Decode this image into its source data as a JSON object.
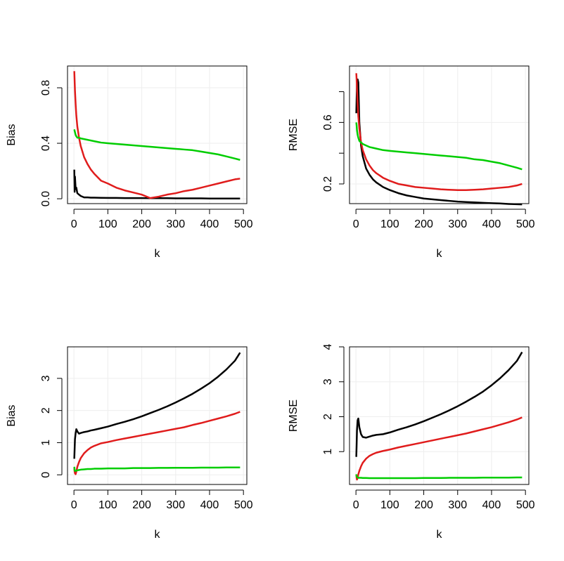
{
  "chart_data": [
    {
      "type": "line",
      "xlabel": "k",
      "ylabel": "Bias",
      "x": [
        1,
        2,
        3,
        5,
        7,
        10,
        15,
        20,
        30,
        40,
        50,
        60,
        80,
        100,
        125,
        150,
        175,
        200,
        225,
        250,
        275,
        300,
        325,
        350,
        375,
        400,
        425,
        450,
        475,
        490
      ],
      "xlim": [
        -19,
        510
      ],
      "xticks": [
        0,
        100,
        200,
        300,
        400,
        500
      ],
      "ylim": [
        -0.035,
        0.957
      ],
      "yticks": [
        {
          "value": 0,
          "label": "0.0"
        },
        0.4,
        0.8
      ],
      "grid": true,
      "series": [
        {
          "color": "#000000",
          "values": [
            0.21,
            0.05,
            0.16,
            0.07,
            0.08,
            0.04,
            0.03,
            0.02,
            0.01,
            0.01,
            0.008,
            0.008,
            0.007,
            0.006,
            0.006,
            0.005,
            0.005,
            0.005,
            0.004,
            0.004,
            0.004,
            0.003,
            0.003,
            0.003,
            0.003,
            0.002,
            0.002,
            0.002,
            0.002,
            0.002
          ]
        },
        {
          "color": "#e01c1c",
          "values": [
            0.92,
            0.85,
            0.78,
            0.68,
            0.6,
            0.52,
            0.44,
            0.38,
            0.3,
            0.25,
            0.21,
            0.18,
            0.13,
            0.11,
            0.08,
            0.06,
            0.045,
            0.03,
            0.005,
            0.015,
            0.03,
            0.04,
            0.055,
            0.065,
            0.08,
            0.095,
            0.11,
            0.125,
            0.14,
            0.145
          ]
        },
        {
          "color": "#00cd00",
          "values": [
            0.5,
            0.49,
            0.48,
            0.46,
            0.45,
            0.44,
            0.44,
            0.435,
            0.43,
            0.425,
            0.42,
            0.415,
            0.405,
            0.4,
            0.395,
            0.39,
            0.385,
            0.38,
            0.375,
            0.37,
            0.365,
            0.36,
            0.355,
            0.35,
            0.34,
            0.33,
            0.32,
            0.305,
            0.29,
            0.28
          ]
        }
      ]
    },
    {
      "type": "line",
      "xlabel": "k",
      "ylabel": "RMSE",
      "x": [
        1,
        2,
        3,
        5,
        7,
        10,
        15,
        20,
        30,
        40,
        50,
        60,
        80,
        100,
        125,
        150,
        175,
        200,
        225,
        250,
        275,
        300,
        325,
        350,
        375,
        400,
        425,
        450,
        475,
        490
      ],
      "xlim": [
        -19,
        510
      ],
      "xticks": [
        0,
        100,
        200,
        300,
        400,
        500
      ],
      "ylim": [
        0.072,
        0.967
      ],
      "yticks": [
        0.2,
        0.6
      ],
      "yminor_ticks": [
        0.4,
        0.8
      ],
      "grid": true,
      "series": [
        {
          "color": "#000000",
          "values": [
            0.66,
            0.75,
            0.85,
            0.88,
            0.86,
            0.6,
            0.45,
            0.38,
            0.3,
            0.26,
            0.23,
            0.21,
            0.18,
            0.16,
            0.14,
            0.125,
            0.115,
            0.105,
            0.1,
            0.095,
            0.09,
            0.085,
            0.082,
            0.08,
            0.077,
            0.075,
            0.073,
            0.07,
            0.068,
            0.067
          ]
        },
        {
          "color": "#e01c1c",
          "values": [
            0.92,
            0.88,
            0.82,
            0.72,
            0.64,
            0.56,
            0.47,
            0.42,
            0.36,
            0.32,
            0.29,
            0.27,
            0.24,
            0.22,
            0.2,
            0.19,
            0.18,
            0.175,
            0.17,
            0.165,
            0.162,
            0.16,
            0.16,
            0.162,
            0.165,
            0.17,
            0.175,
            0.18,
            0.19,
            0.2
          ]
        },
        {
          "color": "#00cd00",
          "values": [
            0.6,
            0.58,
            0.55,
            0.52,
            0.5,
            0.48,
            0.47,
            0.46,
            0.45,
            0.44,
            0.435,
            0.43,
            0.42,
            0.415,
            0.41,
            0.405,
            0.4,
            0.395,
            0.39,
            0.385,
            0.38,
            0.375,
            0.37,
            0.36,
            0.355,
            0.345,
            0.335,
            0.32,
            0.305,
            0.295
          ]
        }
      ]
    },
    {
      "type": "line",
      "xlabel": "k",
      "ylabel": "Bias",
      "x": [
        1,
        2,
        3,
        5,
        7,
        10,
        15,
        20,
        30,
        40,
        50,
        60,
        80,
        100,
        125,
        150,
        175,
        200,
        225,
        250,
        275,
        300,
        325,
        350,
        375,
        400,
        425,
        450,
        475,
        490
      ],
      "xlim": [
        -19,
        510
      ],
      "xticks": [
        0,
        100,
        200,
        300,
        400,
        500
      ],
      "ylim": [
        -0.3,
        3.98
      ],
      "yticks": [
        0,
        1,
        2,
        3
      ],
      "grid": true,
      "series": [
        {
          "color": "#000000",
          "values": [
            0.5,
            0.8,
            1.1,
            1.3,
            1.42,
            1.35,
            1.28,
            1.3,
            1.33,
            1.35,
            1.38,
            1.4,
            1.45,
            1.5,
            1.58,
            1.65,
            1.73,
            1.82,
            1.92,
            2.02,
            2.13,
            2.25,
            2.38,
            2.52,
            2.68,
            2.85,
            3.05,
            3.28,
            3.55,
            3.8
          ]
        },
        {
          "color": "#e01c1c",
          "values": [
            0.2,
            0.1,
            0.05,
            0.02,
            0.1,
            0.25,
            0.4,
            0.52,
            0.67,
            0.77,
            0.85,
            0.9,
            0.98,
            1.02,
            1.08,
            1.13,
            1.18,
            1.23,
            1.28,
            1.33,
            1.38,
            1.43,
            1.48,
            1.55,
            1.61,
            1.68,
            1.75,
            1.82,
            1.9,
            1.96
          ]
        },
        {
          "color": "#00cd00",
          "values": [
            0.25,
            0.15,
            0.12,
            0.12,
            0.13,
            0.14,
            0.15,
            0.16,
            0.17,
            0.18,
            0.18,
            0.19,
            0.19,
            0.2,
            0.2,
            0.2,
            0.21,
            0.21,
            0.21,
            0.215,
            0.215,
            0.22,
            0.22,
            0.22,
            0.225,
            0.225,
            0.225,
            0.23,
            0.23,
            0.23
          ]
        }
      ]
    },
    {
      "type": "line",
      "xlabel": "k",
      "ylabel": "RMSE",
      "x": [
        1,
        2,
        3,
        5,
        7,
        10,
        15,
        20,
        30,
        40,
        50,
        60,
        80,
        100,
        125,
        150,
        175,
        200,
        225,
        250,
        275,
        300,
        325,
        350,
        375,
        400,
        425,
        450,
        475,
        490
      ],
      "xlim": [
        -19,
        510
      ],
      "xticks": [
        0,
        100,
        200,
        300,
        400,
        500
      ],
      "ylim": [
        0.06,
        4.0
      ],
      "yticks": [
        1,
        2,
        3,
        4
      ],
      "grid": true,
      "series": [
        {
          "color": "#000000",
          "values": [
            0.85,
            1.2,
            1.6,
            1.9,
            1.95,
            1.7,
            1.5,
            1.42,
            1.4,
            1.43,
            1.46,
            1.48,
            1.5,
            1.55,
            1.63,
            1.7,
            1.78,
            1.87,
            1.97,
            2.07,
            2.18,
            2.3,
            2.43,
            2.57,
            2.72,
            2.9,
            3.1,
            3.33,
            3.6,
            3.85
          ]
        },
        {
          "color": "#e01c1c",
          "values": [
            0.35,
            0.25,
            0.2,
            0.25,
            0.35,
            0.45,
            0.58,
            0.68,
            0.8,
            0.88,
            0.93,
            0.97,
            1.02,
            1.06,
            1.12,
            1.17,
            1.22,
            1.27,
            1.32,
            1.37,
            1.42,
            1.47,
            1.52,
            1.58,
            1.64,
            1.7,
            1.77,
            1.84,
            1.92,
            1.98
          ]
        },
        {
          "color": "#00cd00",
          "values": [
            0.35,
            0.3,
            0.27,
            0.26,
            0.25,
            0.25,
            0.25,
            0.245,
            0.245,
            0.24,
            0.24,
            0.24,
            0.24,
            0.24,
            0.24,
            0.24,
            0.24,
            0.245,
            0.245,
            0.245,
            0.25,
            0.25,
            0.25,
            0.25,
            0.255,
            0.255,
            0.255,
            0.255,
            0.26,
            0.26
          ]
        }
      ]
    }
  ]
}
